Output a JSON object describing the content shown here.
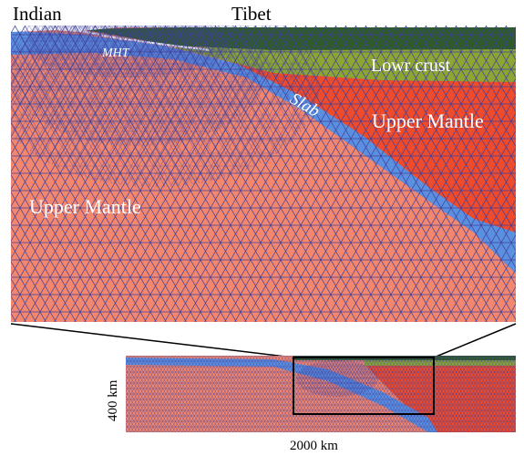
{
  "top_labels": {
    "left_region": "Indian",
    "center_region": "Tibet"
  },
  "layer_labels": {
    "mht": "MHT",
    "slab": "Slab",
    "lower_crust": "Lowr crust",
    "upper_mantle_right": "Upper Mantle",
    "upper_mantle_left": "Upper Mantle"
  },
  "inset": {
    "depth_label": "400 km",
    "width_label": "2000 km"
  },
  "colors": {
    "upper_mantle_left": "#f2876e",
    "upper_mantle_right": "#ee4a2c",
    "slab": "#5b8fe0",
    "lower_crust": "#8ca535",
    "upper_crust": "#2f5a2c",
    "mesh_line": "#3d3f9a",
    "inset_box": "#000000"
  }
}
